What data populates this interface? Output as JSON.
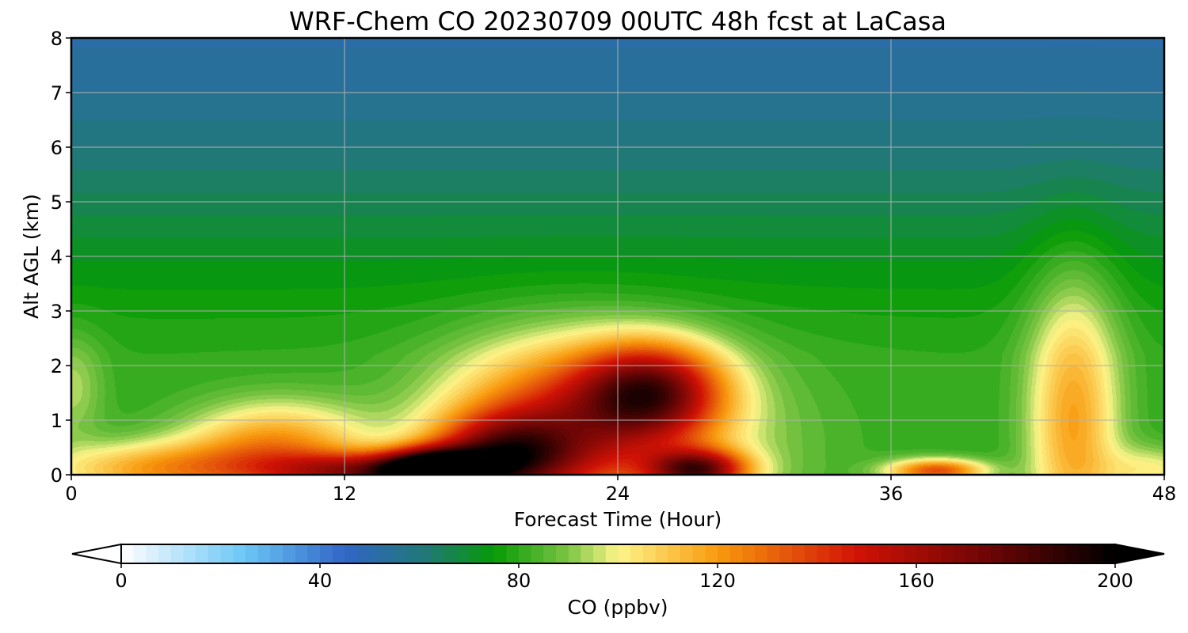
{
  "chart_data": {
    "type": "heatmap",
    "title": "WRF-Chem CO  20230709 00UTC 48h fcst at LaCasa",
    "xlabel": "Forecast Time (Hour)",
    "ylabel": "Alt AGL (km)",
    "xlim": [
      0,
      48
    ],
    "ylim": [
      0,
      8
    ],
    "xticks": [
      0,
      12,
      24,
      36,
      48
    ],
    "yticks": [
      0,
      1,
      2,
      3,
      4,
      5,
      6,
      7,
      8
    ],
    "grid": true,
    "z_background_ppbv": [
      {
        "alt_km": 0.0,
        "value": 80
      },
      {
        "alt_km": 2.2,
        "value": 80
      },
      {
        "alt_km": 3.0,
        "value": 77
      },
      {
        "alt_km": 4.0,
        "value": 72
      },
      {
        "alt_km": 5.0,
        "value": 66
      },
      {
        "alt_km": 6.0,
        "value": 60
      },
      {
        "alt_km": 7.0,
        "value": 55
      },
      {
        "alt_km": 8.0,
        "value": 52
      }
    ],
    "plumes": [
      {
        "x": 0.0,
        "y": 1.6,
        "sx": 1.0,
        "sy": 0.7,
        "value": 14
      },
      {
        "x": 4.0,
        "y": 0.1,
        "sx": 3.5,
        "sy": 0.35,
        "value": 38
      },
      {
        "x": 9.0,
        "y": 0.55,
        "sx": 2.8,
        "sy": 0.55,
        "value": 40
      },
      {
        "x": 13.0,
        "y": 0.05,
        "sx": 3.0,
        "sy": 0.25,
        "value": 70
      },
      {
        "x": 16.0,
        "y": 0.1,
        "sx": 1.6,
        "sy": 0.25,
        "value": 115
      },
      {
        "x": 19.0,
        "y": 0.35,
        "sx": 2.2,
        "sy": 0.5,
        "value": 70
      },
      {
        "x": 21.5,
        "y": 1.0,
        "sx": 3.5,
        "sy": 1.0,
        "value": 45
      },
      {
        "x": 25.5,
        "y": 1.55,
        "sx": 2.2,
        "sy": 0.6,
        "value": 75
      },
      {
        "x": 27.5,
        "y": 0.1,
        "sx": 1.5,
        "sy": 0.25,
        "value": 80
      },
      {
        "x": 24.0,
        "y": 0.5,
        "sx": 5.0,
        "sy": 1.2,
        "value": 25
      },
      {
        "x": 38.0,
        "y": 0.08,
        "sx": 1.5,
        "sy": 0.15,
        "value": 55
      },
      {
        "x": 44.0,
        "y": 1.0,
        "sx": 1.4,
        "sy": 1.8,
        "value": 38
      },
      {
        "x": 47.5,
        "y": 0.1,
        "sx": 1.5,
        "sy": 0.3,
        "value": 20
      }
    ],
    "colorbar": {
      "label": "CO  (ppbv)",
      "min": 0,
      "max": 200,
      "ticks": [
        0,
        40,
        80,
        120,
        160,
        200
      ],
      "extend": "both",
      "colors": [
        {
          "value": 0,
          "color": "#ffffff"
        },
        {
          "value": 25,
          "color": "#6ac6f5"
        },
        {
          "value": 45,
          "color": "#3165c6"
        },
        {
          "value": 62,
          "color": "#1f7a72"
        },
        {
          "value": 75,
          "color": "#069a06"
        },
        {
          "value": 90,
          "color": "#7dc544"
        },
        {
          "value": 100,
          "color": "#fdf58a"
        },
        {
          "value": 120,
          "color": "#f99a0e"
        },
        {
          "value": 148,
          "color": "#d11205"
        },
        {
          "value": 175,
          "color": "#6a0505"
        },
        {
          "value": 200,
          "color": "#000000"
        }
      ]
    }
  }
}
